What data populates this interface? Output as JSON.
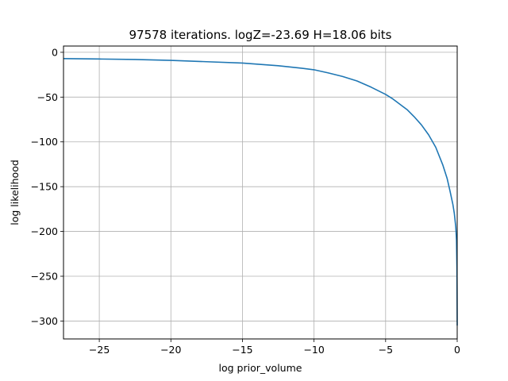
{
  "chart_data": {
    "type": "line",
    "title": "97578 iterations. logZ=-23.69 H=18.06 bits",
    "xlabel": "log prior_volume",
    "ylabel": "log likelihood",
    "xlim": [
      -27.5,
      0
    ],
    "ylim": [
      -320,
      7
    ],
    "xticks": [
      -25,
      -20,
      -15,
      -10,
      -5,
      0
    ],
    "yticks": [
      0,
      -50,
      -100,
      -150,
      -200,
      -250,
      -300
    ],
    "xtick_labels": [
      "−25",
      "−20",
      "−15",
      "−10",
      "−5",
      "0"
    ],
    "ytick_labels": [
      "0",
      "−50",
      "−100",
      "−150",
      "−200",
      "−250",
      "−300"
    ],
    "grid": true,
    "line_color": "#1f77b4",
    "grid_color": "#b0b0b0",
    "series": [
      {
        "x": [
          -27.5,
          -25,
          -22.5,
          -20,
          -17.5,
          -15,
          -12.5,
          -11,
          -10,
          -9,
          -8,
          -7,
          -6,
          -5,
          -4.5,
          -4,
          -3.5,
          -3,
          -2.5,
          -2,
          -1.5,
          -1,
          -0.7,
          -0.5,
          -0.3,
          -0.2,
          -0.1,
          -0.05,
          -0.02,
          -0.01,
          0
        ],
        "y": [
          -7,
          -7.5,
          -8,
          -9,
          -10.5,
          -12,
          -15,
          -17.5,
          -19.5,
          -23,
          -27,
          -32,
          -39,
          -47,
          -52,
          -58,
          -64,
          -72,
          -81,
          -92,
          -106,
          -126,
          -141,
          -155,
          -170,
          -180,
          -195,
          -210,
          -240,
          -270,
          -305
        ]
      }
    ]
  }
}
